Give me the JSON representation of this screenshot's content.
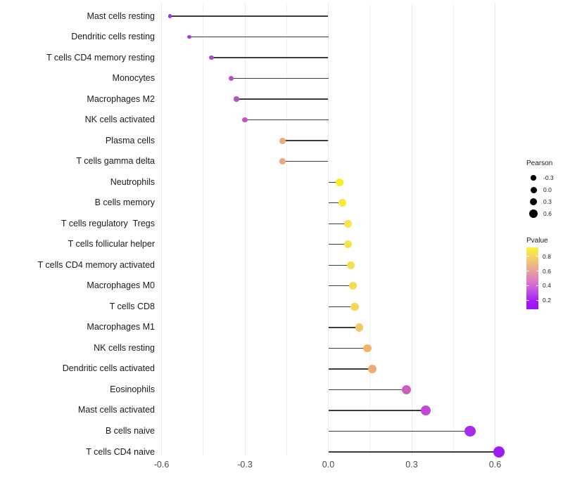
{
  "chart_data": {
    "type": "lollipop",
    "orientation": "horizontal",
    "title": "",
    "xlabel": "",
    "ylabel": "",
    "xlim": [
      -0.65,
      0.67
    ],
    "grid": "vertical-only",
    "baseline": 0,
    "x_major_ticks": [
      -0.6,
      -0.3,
      0.0,
      0.3,
      0.6
    ],
    "x_tick_labels": [
      "-0.6",
      "-0.3",
      "0.0",
      "0.3",
      "0.6"
    ],
    "x_minor_ticks": [
      -0.45,
      -0.15,
      0.15,
      0.45
    ],
    "points": [
      {
        "label": "Mast cells resting",
        "pearson": -0.57,
        "pvalue": 0.18,
        "color": "#A236D6"
      },
      {
        "label": "Dendritic cells resting",
        "pearson": -0.5,
        "pvalue": 0.22,
        "color": "#A93ED2"
      },
      {
        "label": "T cells CD4 memory resting",
        "pearson": -0.42,
        "pvalue": 0.27,
        "color": "#AF47CA"
      },
      {
        "label": "Monocytes",
        "pearson": -0.35,
        "pvalue": 0.3,
        "color": "#B94FC5"
      },
      {
        "label": "Macrophages M2",
        "pearson": -0.33,
        "pvalue": 0.31,
        "color": "#BB50C6"
      },
      {
        "label": "NK cells activated",
        "pearson": -0.3,
        "pvalue": 0.33,
        "color": "#C158C1"
      },
      {
        "label": "Plasma cells",
        "pearson": -0.165,
        "pvalue": 0.6,
        "color": "#EEA87E"
      },
      {
        "label": "T cells gamma delta",
        "pearson": -0.165,
        "pvalue": 0.6,
        "color": "#EDA77E"
      },
      {
        "label": "Neutrophils",
        "pearson": 0.04,
        "pvalue": 0.9,
        "color": "#FAEE21"
      },
      {
        "label": "B cells memory",
        "pearson": 0.05,
        "pvalue": 0.86,
        "color": "#F9EA38"
      },
      {
        "label": "T cells regulatory  Tregs",
        "pearson": 0.07,
        "pvalue": 0.83,
        "color": "#F8E546"
      },
      {
        "label": "T cells follicular helper",
        "pearson": 0.072,
        "pvalue": 0.82,
        "color": "#F7E34A"
      },
      {
        "label": "T cells CD4 memory activated",
        "pearson": 0.08,
        "pvalue": 0.81,
        "color": "#F6E04E"
      },
      {
        "label": "Macrophages M0",
        "pearson": 0.088,
        "pvalue": 0.79,
        "color": "#F5DB53"
      },
      {
        "label": "T cells CD8",
        "pearson": 0.095,
        "pvalue": 0.77,
        "color": "#F4D659"
      },
      {
        "label": "Macrophages M1",
        "pearson": 0.112,
        "pvalue": 0.71,
        "color": "#F2C968"
      },
      {
        "label": "NK cells resting",
        "pearson": 0.14,
        "pvalue": 0.64,
        "color": "#F0B467"
      },
      {
        "label": "Dendritic cells activated",
        "pearson": 0.158,
        "pvalue": 0.61,
        "color": "#EFAB71"
      },
      {
        "label": "Eosinophils",
        "pearson": 0.28,
        "pvalue": 0.36,
        "color": "#CC5FBE"
      },
      {
        "label": "Mast cells activated",
        "pearson": 0.35,
        "pvalue": 0.26,
        "color": "#BE49D8"
      },
      {
        "label": "B cells naive",
        "pearson": 0.51,
        "pvalue": 0.12,
        "color": "#A82BEA"
      },
      {
        "label": "T cells CD4 naive",
        "pearson": 0.614,
        "pvalue": 0.08,
        "color": "#9E1CF4"
      }
    ]
  },
  "legends": {
    "pearson": {
      "title": "Pearson",
      "dot_color": "#000000",
      "entries": [
        {
          "label": "-0.3",
          "value": -0.3
        },
        {
          "label": "0.0",
          "value": 0.0
        },
        {
          "label": "0.3",
          "value": 0.3
        },
        {
          "label": "0.6",
          "value": 0.6
        }
      ]
    },
    "pvalue": {
      "title": "Pvalue",
      "tick_labels": [
        "0.8",
        "0.6",
        "0.4",
        "0.2"
      ],
      "tick_values": [
        0.8,
        0.6,
        0.4,
        0.2
      ],
      "range_top": 0.92,
      "range_bottom": 0.08,
      "gradient_stops": [
        "#FAF23B",
        "#F5DB5B",
        "#F0BF7B",
        "#EAA298",
        "#DF86BD",
        "#CF68D9",
        "#B844E8",
        "#A21AF3",
        "#9C12F6"
      ]
    }
  },
  "colors": {
    "background": "#FFFFFF",
    "stem": "#3C3C3C",
    "grid_major": "#E9E9E9",
    "grid_minor": "#F3F3F3",
    "axis_text": "#4D4D4D",
    "label_text": "#1A1A1A"
  }
}
